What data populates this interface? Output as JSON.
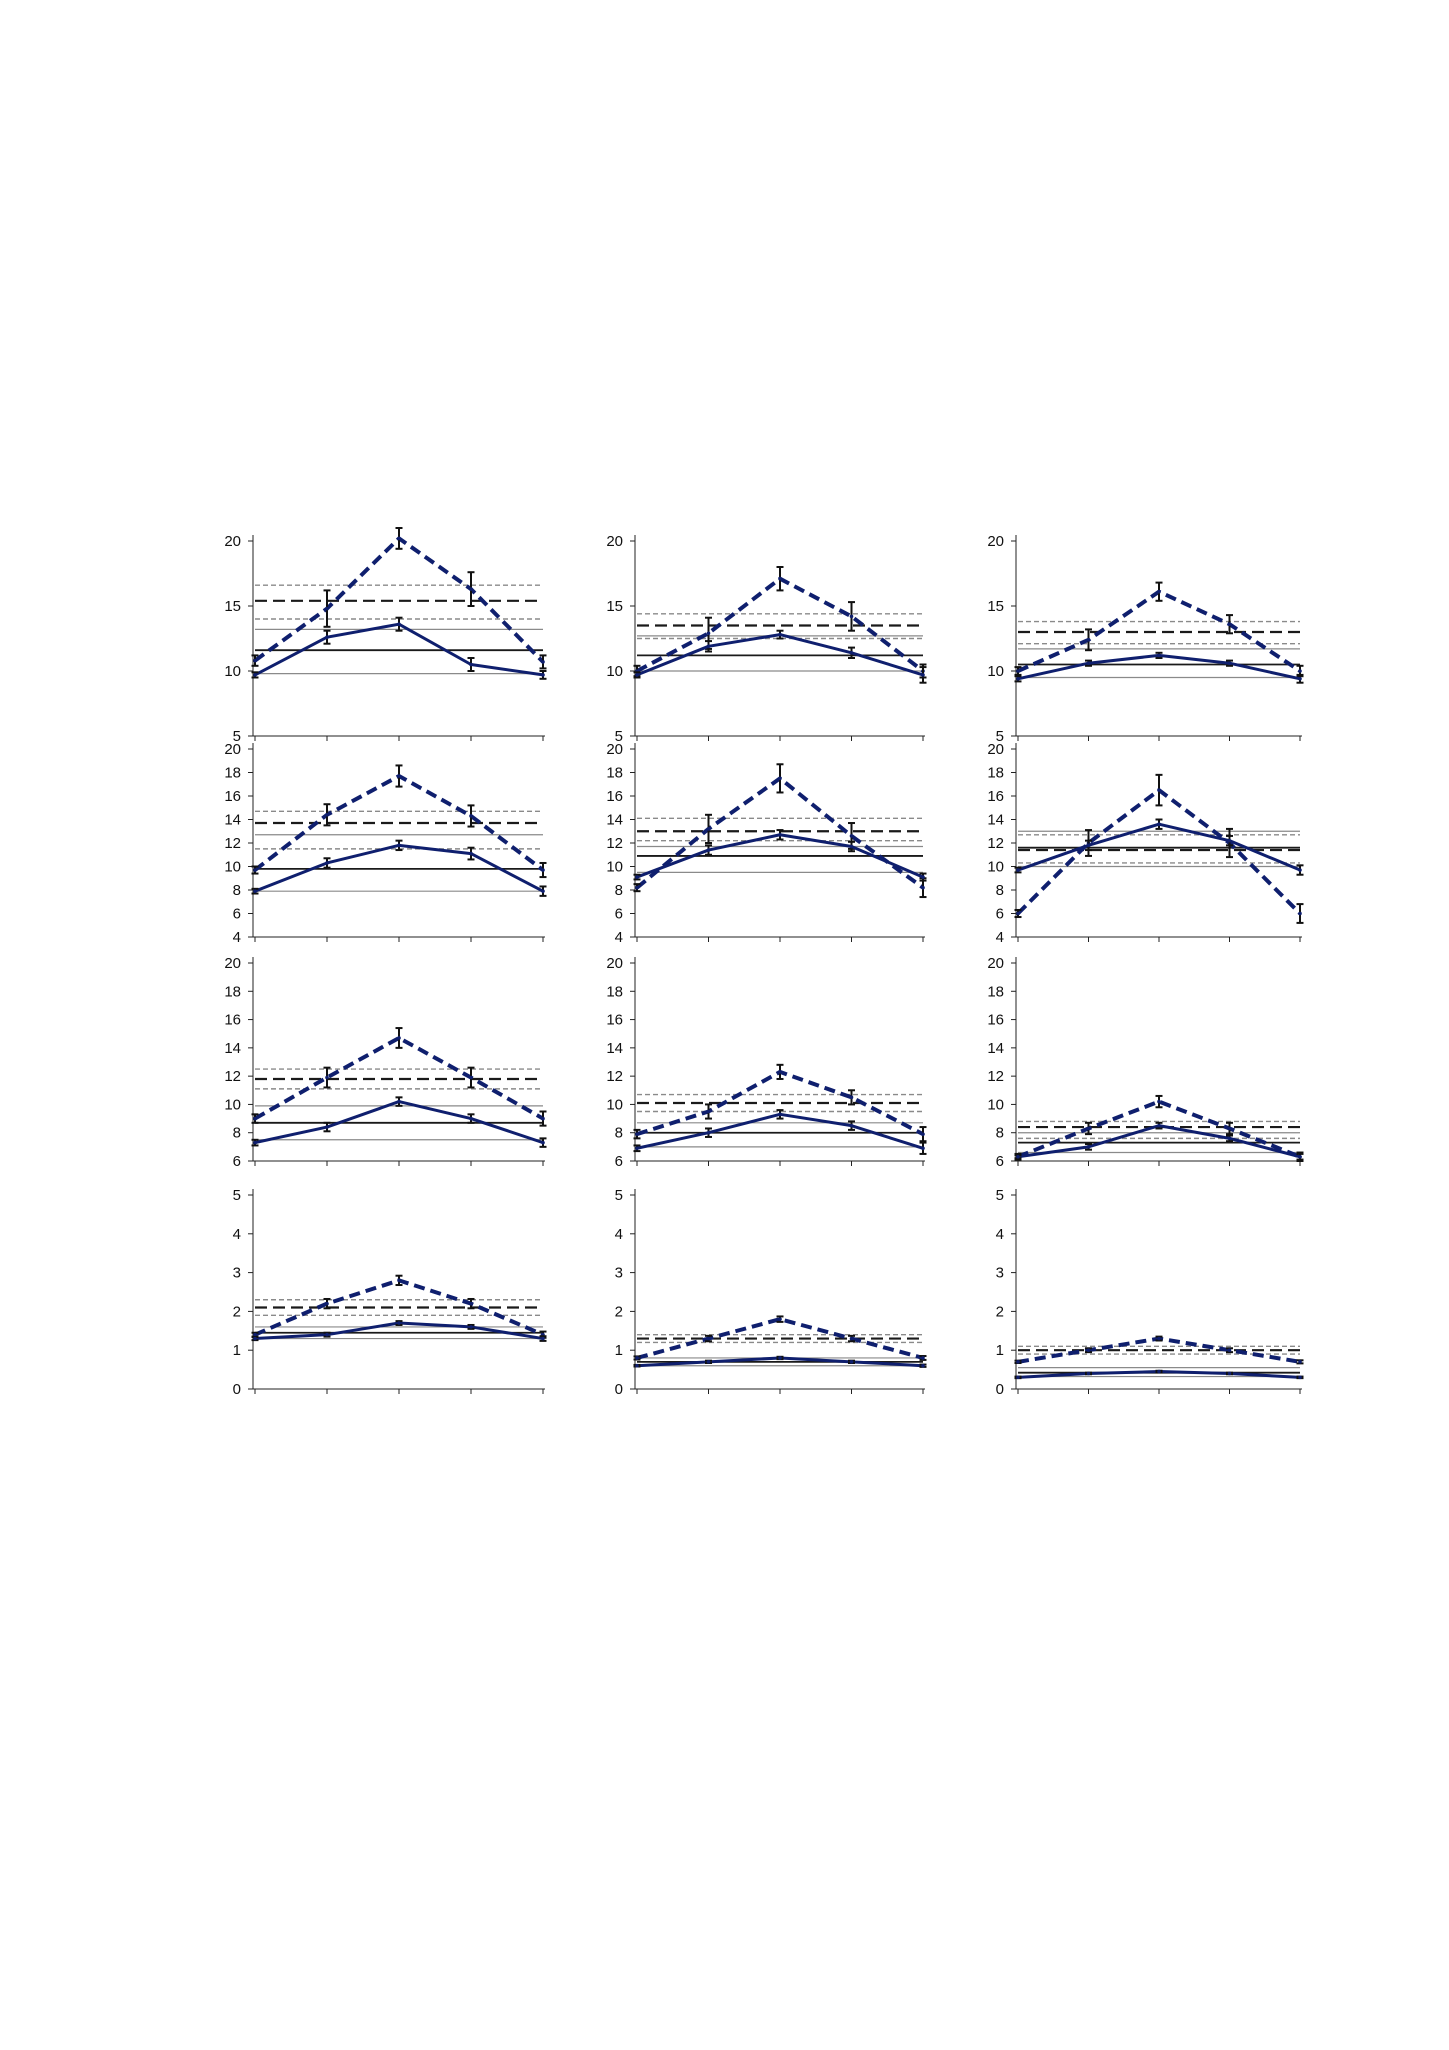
{
  "chart_data": [
    {
      "type": "line",
      "ylim": [
        5,
        20
      ],
      "yticks": [
        5,
        10,
        15,
        20
      ],
      "x": [
        1,
        2,
        3,
        4,
        5
      ],
      "series": [
        {
          "style": "dashed",
          "values": [
            10.8,
            14.8,
            20.2,
            16.3,
            10.7
          ],
          "errors": [
            0.4,
            1.4,
            0.8,
            1.3,
            0.5
          ]
        },
        {
          "style": "solid",
          "values": [
            9.7,
            12.6,
            13.6,
            10.5,
            9.7
          ],
          "errors": [
            0.2,
            0.5,
            0.5,
            0.5,
            0.3
          ]
        }
      ],
      "hlines": [
        {
          "y": 16.6,
          "style": "thin-dashed"
        },
        {
          "y": 15.4,
          "style": "dashed"
        },
        {
          "y": 14.0,
          "style": "thin-dashed"
        },
        {
          "y": 13.2,
          "style": "thin"
        },
        {
          "y": 11.6,
          "style": "solid"
        },
        {
          "y": 9.8,
          "style": "thin"
        }
      ]
    },
    {
      "type": "line",
      "ylim": [
        5,
        20
      ],
      "yticks": [
        5,
        10,
        15,
        20
      ],
      "x": [
        1,
        2,
        3,
        4,
        5
      ],
      "series": [
        {
          "style": "dashed",
          "values": [
            10.0,
            12.9,
            17.1,
            14.2,
            10.0
          ],
          "errors": [
            0.4,
            1.2,
            0.9,
            1.1,
            0.5
          ]
        },
        {
          "style": "solid",
          "values": [
            9.7,
            11.9,
            12.8,
            11.4,
            9.7
          ],
          "errors": [
            0.2,
            0.4,
            0.3,
            0.4,
            0.6
          ]
        }
      ],
      "hlines": [
        {
          "y": 14.4,
          "style": "thin-dashed"
        },
        {
          "y": 13.5,
          "style": "dashed"
        },
        {
          "y": 12.5,
          "style": "thin-dashed"
        },
        {
          "y": 12.7,
          "style": "thin"
        },
        {
          "y": 11.2,
          "style": "solid"
        },
        {
          "y": 10.0,
          "style": "thin"
        }
      ]
    },
    {
      "type": "line",
      "ylim": [
        5,
        20
      ],
      "yticks": [
        5,
        10,
        15,
        20
      ],
      "x": [
        1,
        2,
        3,
        4,
        5
      ],
      "series": [
        {
          "style": "dashed",
          "values": [
            10.0,
            12.4,
            16.1,
            13.6,
            10.0
          ],
          "errors": [
            0.3,
            0.8,
            0.7,
            0.7,
            0.4
          ]
        },
        {
          "style": "solid",
          "values": [
            9.4,
            10.6,
            11.2,
            10.6,
            9.4
          ],
          "errors": [
            0.2,
            0.2,
            0.2,
            0.2,
            0.3
          ]
        }
      ],
      "hlines": [
        {
          "y": 13.8,
          "style": "thin-dashed"
        },
        {
          "y": 13.0,
          "style": "dashed"
        },
        {
          "y": 12.1,
          "style": "thin-dashed"
        },
        {
          "y": 11.7,
          "style": "thin"
        },
        {
          "y": 10.5,
          "style": "solid"
        },
        {
          "y": 9.5,
          "style": "thin"
        }
      ]
    },
    {
      "type": "line",
      "ylim": [
        4,
        20
      ],
      "yticks": [
        4,
        6,
        8,
        10,
        12,
        14,
        16,
        18,
        20
      ],
      "x": [
        1,
        2,
        3,
        4,
        5
      ],
      "series": [
        {
          "style": "dashed",
          "values": [
            9.7,
            14.4,
            17.7,
            14.3,
            9.7
          ],
          "errors": [
            0.3,
            0.9,
            0.9,
            0.9,
            0.6
          ]
        },
        {
          "style": "solid",
          "values": [
            7.9,
            10.3,
            11.8,
            11.1,
            7.9
          ],
          "errors": [
            0.2,
            0.4,
            0.4,
            0.5,
            0.4
          ]
        }
      ],
      "hlines": [
        {
          "y": 14.7,
          "style": "thin-dashed"
        },
        {
          "y": 13.7,
          "style": "dashed"
        },
        {
          "y": 12.7,
          "style": "thin"
        },
        {
          "y": 11.5,
          "style": "thin-dashed"
        },
        {
          "y": 9.8,
          "style": "solid"
        },
        {
          "y": 7.9,
          "style": "thin"
        }
      ]
    },
    {
      "type": "line",
      "ylim": [
        4,
        20
      ],
      "yticks": [
        4,
        6,
        8,
        10,
        12,
        14,
        16,
        18,
        20
      ],
      "x": [
        1,
        2,
        3,
        4,
        5
      ],
      "series": [
        {
          "style": "dashed",
          "values": [
            8.2,
            13.2,
            17.5,
            12.6,
            8.2
          ],
          "errors": [
            0.3,
            1.2,
            1.2,
            1.1,
            0.8
          ]
        },
        {
          "style": "solid",
          "values": [
            9.1,
            11.4,
            12.7,
            11.7,
            9.1
          ],
          "errors": [
            0.2,
            0.4,
            0.4,
            0.4,
            0.3
          ]
        }
      ],
      "hlines": [
        {
          "y": 14.1,
          "style": "thin-dashed"
        },
        {
          "y": 13.0,
          "style": "dashed"
        },
        {
          "y": 12.2,
          "style": "thin-dashed"
        },
        {
          "y": 11.7,
          "style": "thin"
        },
        {
          "y": 10.9,
          "style": "solid"
        },
        {
          "y": 9.5,
          "style": "thin"
        }
      ]
    },
    {
      "type": "line",
      "ylim": [
        4,
        20
      ],
      "yticks": [
        4,
        6,
        8,
        10,
        12,
        14,
        16,
        18,
        20
      ],
      "x": [
        1,
        2,
        3,
        4,
        5
      ],
      "series": [
        {
          "style": "dashed",
          "values": [
            6.0,
            12.0,
            16.5,
            12.0,
            6.0
          ],
          "errors": [
            0.3,
            1.1,
            1.3,
            1.2,
            0.8
          ]
        },
        {
          "style": "solid",
          "values": [
            9.7,
            11.8,
            13.6,
            12.2,
            9.7
          ],
          "errors": [
            0.2,
            0.4,
            0.4,
            0.4,
            0.4
          ]
        }
      ],
      "hlines": [
        {
          "y": 13.0,
          "style": "thin"
        },
        {
          "y": 12.7,
          "style": "thin-dashed"
        },
        {
          "y": 11.6,
          "style": "solid"
        },
        {
          "y": 11.4,
          "style": "dashed"
        },
        {
          "y": 10.3,
          "style": "thin-dashed"
        },
        {
          "y": 10.0,
          "style": "thin"
        }
      ]
    },
    {
      "type": "line",
      "ylim": [
        6,
        20
      ],
      "yticks": [
        6,
        8,
        10,
        12,
        14,
        16,
        18,
        20
      ],
      "x": [
        1,
        2,
        3,
        4,
        5
      ],
      "series": [
        {
          "style": "dashed",
          "values": [
            9.0,
            11.9,
            14.7,
            11.9,
            9.0
          ],
          "errors": [
            0.3,
            0.7,
            0.7,
            0.7,
            0.5
          ]
        },
        {
          "style": "solid",
          "values": [
            7.3,
            8.4,
            10.2,
            9.0,
            7.3
          ],
          "errors": [
            0.2,
            0.3,
            0.3,
            0.3,
            0.3
          ]
        }
      ],
      "hlines": [
        {
          "y": 12.5,
          "style": "thin-dashed"
        },
        {
          "y": 11.8,
          "style": "dashed"
        },
        {
          "y": 11.1,
          "style": "thin-dashed"
        },
        {
          "y": 9.9,
          "style": "thin"
        },
        {
          "y": 8.7,
          "style": "solid"
        },
        {
          "y": 7.5,
          "style": "thin"
        }
      ]
    },
    {
      "type": "line",
      "ylim": [
        6,
        20
      ],
      "yticks": [
        6,
        8,
        10,
        12,
        14,
        16,
        18,
        20
      ],
      "x": [
        1,
        2,
        3,
        4,
        5
      ],
      "series": [
        {
          "style": "dashed",
          "values": [
            7.9,
            9.5,
            12.3,
            10.5,
            7.9
          ],
          "errors": [
            0.3,
            0.5,
            0.5,
            0.5,
            0.5
          ]
        },
        {
          "style": "solid",
          "values": [
            6.9,
            8.0,
            9.3,
            8.5,
            6.9
          ],
          "errors": [
            0.2,
            0.3,
            0.3,
            0.3,
            0.4
          ]
        }
      ],
      "hlines": [
        {
          "y": 10.7,
          "style": "thin-dashed"
        },
        {
          "y": 10.1,
          "style": "dashed"
        },
        {
          "y": 9.5,
          "style": "thin-dashed"
        },
        {
          "y": 8.7,
          "style": "thin"
        },
        {
          "y": 8.0,
          "style": "solid"
        },
        {
          "y": 7.0,
          "style": "thin"
        }
      ]
    },
    {
      "type": "line",
      "ylim": [
        6,
        20
      ],
      "yticks": [
        6,
        8,
        10,
        12,
        14,
        16,
        18,
        20
      ],
      "x": [
        1,
        2,
        3,
        4,
        5
      ],
      "series": [
        {
          "style": "dashed",
          "values": [
            6.3,
            8.3,
            10.2,
            8.3,
            6.3
          ],
          "errors": [
            0.2,
            0.4,
            0.4,
            0.4,
            0.3
          ]
        },
        {
          "style": "solid",
          "values": [
            6.3,
            7.0,
            8.5,
            7.6,
            6.3
          ],
          "errors": [
            0.1,
            0.2,
            0.2,
            0.2,
            0.2
          ]
        }
      ],
      "hlines": [
        {
          "y": 8.8,
          "style": "thin-dashed"
        },
        {
          "y": 8.4,
          "style": "dashed"
        },
        {
          "y": 8.0,
          "style": "thin"
        },
        {
          "y": 7.6,
          "style": "thin-dashed"
        },
        {
          "y": 7.3,
          "style": "solid"
        },
        {
          "y": 6.6,
          "style": "thin"
        }
      ]
    },
    {
      "type": "line",
      "ylim": [
        0,
        5
      ],
      "yticks": [
        0,
        1,
        2,
        3,
        4,
        5
      ],
      "x": [
        1,
        2,
        3,
        4,
        5
      ],
      "series": [
        {
          "style": "dashed",
          "values": [
            1.4,
            2.2,
            2.8,
            2.2,
            1.4
          ],
          "errors": [
            0.05,
            0.12,
            0.12,
            0.12,
            0.08
          ]
        },
        {
          "style": "solid",
          "values": [
            1.3,
            1.4,
            1.7,
            1.6,
            1.3
          ],
          "errors": [
            0.04,
            0.05,
            0.05,
            0.05,
            0.06
          ]
        }
      ],
      "hlines": [
        {
          "y": 2.3,
          "style": "thin-dashed"
        },
        {
          "y": 2.1,
          "style": "dashed"
        },
        {
          "y": 1.9,
          "style": "thin-dashed"
        },
        {
          "y": 1.6,
          "style": "thin"
        },
        {
          "y": 1.45,
          "style": "solid"
        },
        {
          "y": 1.3,
          "style": "thin"
        }
      ]
    },
    {
      "type": "line",
      "ylim": [
        0,
        5
      ],
      "yticks": [
        0,
        1,
        2,
        3,
        4,
        5
      ],
      "x": [
        1,
        2,
        3,
        4,
        5
      ],
      "series": [
        {
          "style": "dashed",
          "values": [
            0.8,
            1.3,
            1.8,
            1.3,
            0.8
          ],
          "errors": [
            0.04,
            0.07,
            0.07,
            0.07,
            0.05
          ]
        },
        {
          "style": "solid",
          "values": [
            0.6,
            0.7,
            0.8,
            0.7,
            0.6
          ],
          "errors": [
            0.02,
            0.03,
            0.03,
            0.03,
            0.03
          ]
        }
      ],
      "hlines": [
        {
          "y": 1.4,
          "style": "thin-dashed"
        },
        {
          "y": 1.3,
          "style": "dashed"
        },
        {
          "y": 1.2,
          "style": "thin-dashed"
        },
        {
          "y": 0.8,
          "style": "thin"
        },
        {
          "y": 0.7,
          "style": "solid"
        },
        {
          "y": 0.6,
          "style": "thin"
        }
      ]
    },
    {
      "type": "line",
      "ylim": [
        0,
        5
      ],
      "yticks": [
        0,
        1,
        2,
        3,
        4,
        5
      ],
      "x": [
        1,
        2,
        3,
        4,
        5
      ],
      "series": [
        {
          "style": "dashed",
          "values": [
            0.7,
            1.0,
            1.3,
            1.0,
            0.7
          ],
          "errors": [
            0.03,
            0.05,
            0.05,
            0.05,
            0.04
          ]
        },
        {
          "style": "solid",
          "values": [
            0.3,
            0.4,
            0.45,
            0.4,
            0.3
          ],
          "errors": [
            0.02,
            0.02,
            0.02,
            0.02,
            0.02
          ]
        }
      ],
      "hlines": [
        {
          "y": 1.1,
          "style": "thin-dashed"
        },
        {
          "y": 1.0,
          "style": "dashed"
        },
        {
          "y": 0.9,
          "style": "thin-dashed"
        },
        {
          "y": 0.55,
          "style": "thin"
        },
        {
          "y": 0.42,
          "style": "solid"
        },
        {
          "y": 0.32,
          "style": "thin"
        }
      ]
    }
  ],
  "colors": {
    "series": "#0f1f6e",
    "reference": "#1a1a1a",
    "reference_light": "#8a8a8a",
    "axis": "#222222",
    "error_bar": "#111111"
  }
}
